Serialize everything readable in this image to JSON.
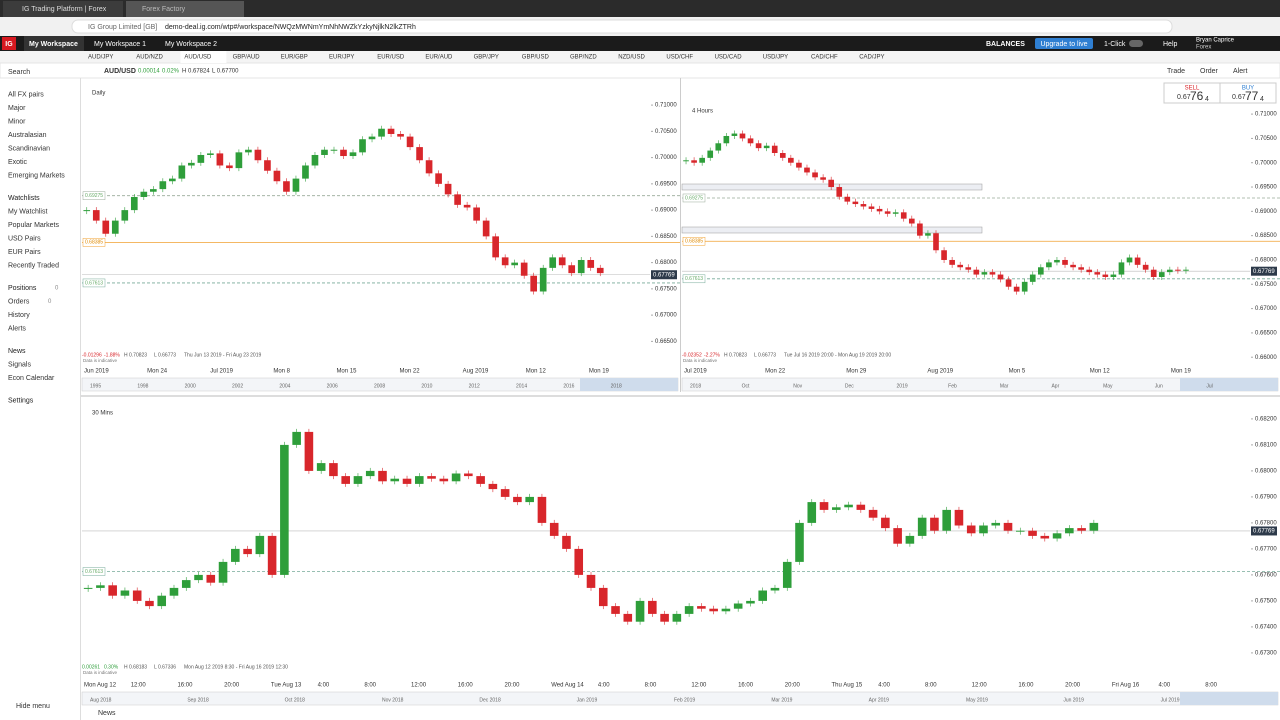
{
  "browser": {
    "tabs": [
      "IG Trading Platform | Forex",
      "Forex Factory"
    ],
    "site": "IG Group Limited [GB]",
    "url": "demo-deal.ig.com/wtp#/workspace/NWQzMWNmYmNhNWZkYzkyNjlkN2lkZTRh"
  },
  "topbar": {
    "logo": "IG",
    "workspaces": [
      "My Workspace",
      "My Workspace 1",
      "My Workspace 2"
    ],
    "balances": "BALANCES",
    "upgrade": "Upgrade to live",
    "one_click": "1-Click",
    "help": "Help",
    "user": "Bryan Caprice",
    "account": "Forex"
  },
  "sidebar": {
    "groups": [
      [
        "Search"
      ],
      [
        "All FX pairs",
        "Major",
        "Minor",
        "Australasian",
        "Scandinavian",
        "Exotic",
        "Emerging Markets"
      ],
      [
        "Watchlists",
        "My Watchlist",
        "Popular Markets",
        "USD Pairs",
        "EUR Pairs",
        "Recently Traded"
      ],
      [
        "Positions",
        "Orders",
        "History",
        "Alerts"
      ],
      [
        "News",
        "Signals",
        "Econ Calendar"
      ],
      [
        "Settings"
      ]
    ],
    "badges": [
      0,
      0
    ],
    "hide": "Hide menu",
    "news": "News"
  },
  "pair_tabs": [
    "AUD/JPY",
    "AUD/NZD",
    "AUD/USD",
    "GBP/AUD",
    "EUR/GBP",
    "EUR/JPY",
    "EUR/USD",
    "EUR/AUD",
    "GBP/JPY",
    "GBP/USD",
    "GBP/NZD",
    "NZD/USD",
    "USD/CHF",
    "USD/CAD",
    "USD/JPY",
    "CAD/CHF",
    "CAD/JPY"
  ],
  "instrument": {
    "name": "AUD/USD",
    "change": "0.00014",
    "percent": "0.02%",
    "high": "H 0.67824",
    "low": "L 0.67700",
    "actions": [
      "Trade",
      "Order",
      "Alert"
    ],
    "sell": {
      "label": "SELL",
      "prefix": "0.67",
      "big": "76",
      "small": "4"
    },
    "buy": {
      "label": "BUY",
      "prefix": "0.67",
      "big": "77",
      "small": "4"
    }
  },
  "candle_colors": {
    "up": "#2e9e3a",
    "down": "#d8262b"
  },
  "charts": [
    {
      "title": "Daily",
      "ylim": [
        0.6605,
        0.7144
      ],
      "yticks": [
        {
          "value": 0.71,
          "label": "0.71000"
        },
        {
          "value": 0.705,
          "label": "0.70500"
        },
        {
          "value": 0.7,
          "label": "0.70000"
        },
        {
          "value": 0.695,
          "label": "0.69500"
        },
        {
          "value": 0.69,
          "label": "0.69000"
        },
        {
          "value": 0.685,
          "label": "0.68500"
        },
        {
          "value": 0.68,
          "label": "0.68000"
        },
        {
          "value": 0.675,
          "label": "0.67500"
        },
        {
          "value": 0.67,
          "label": "0.67000"
        },
        {
          "value": 0.665,
          "label": "0.66500"
        }
      ],
      "closes": [
        0.69,
        0.688,
        0.6855,
        0.688,
        0.69,
        0.6925,
        0.6935,
        0.694,
        0.6955,
        0.696,
        0.6985,
        0.699,
        0.7005,
        0.7008,
        0.6985,
        0.698,
        0.701,
        0.7015,
        0.6995,
        0.6975,
        0.6955,
        0.6935,
        0.696,
        0.6985,
        0.7005,
        0.7015,
        0.7015,
        0.7003,
        0.701,
        0.7035,
        0.704,
        0.7055,
        0.7045,
        0.704,
        0.702,
        0.6995,
        0.697,
        0.695,
        0.693,
        0.691,
        0.6905,
        0.688,
        0.685,
        0.681,
        0.6795,
        0.68,
        0.6775,
        0.6745,
        0.679,
        0.681,
        0.6795,
        0.678,
        0.6805,
        0.679,
        0.678
      ],
      "levels": [
        0.69275,
        0.68385,
        0.67613
      ],
      "price": 0.67769,
      "info": [
        "-0.01296",
        "-1.88%",
        "H 0.70823",
        "L 0.66773",
        "Thu Jun 13 2019 - Fri Aug 23 2019"
      ],
      "note": "Data is indicative",
      "xlabels": [
        "Jun 2019",
        "Mon 24",
        "Jul 2019",
        "Mon 8",
        "Mon 15",
        "Mon 22",
        "Aug 2019",
        "Mon 12",
        "Mon 19"
      ],
      "navigator": [
        "1995",
        "1998",
        "2000",
        "2002",
        "2004",
        "2006",
        "2008",
        "2010",
        "2012",
        "2014",
        "2016",
        "2018"
      ]
    },
    {
      "title": "4 Hours",
      "ylim": [
        0.6584,
        0.7129
      ],
      "yticks": [
        {
          "value": 0.71,
          "label": "0.71000"
        },
        {
          "value": 0.705,
          "label": "0.70500"
        },
        {
          "value": 0.7,
          "label": "0.70000"
        },
        {
          "value": 0.695,
          "label": "0.69500"
        },
        {
          "value": 0.69,
          "label": "0.69000"
        },
        {
          "value": 0.685,
          "label": "0.68500"
        },
        {
          "value": 0.68,
          "label": "0.68000"
        },
        {
          "value": 0.675,
          "label": "0.67500"
        },
        {
          "value": 0.67,
          "label": "0.67000"
        },
        {
          "value": 0.665,
          "label": "0.66500"
        },
        {
          "value": 0.66,
          "label": "0.66000"
        }
      ],
      "closes": [
        0.7005,
        0.7,
        0.701,
        0.7025,
        0.704,
        0.7055,
        0.706,
        0.705,
        0.704,
        0.703,
        0.7035,
        0.702,
        0.701,
        0.7,
        0.699,
        0.698,
        0.697,
        0.6965,
        0.695,
        0.693,
        0.692,
        0.6915,
        0.691,
        0.6905,
        0.69,
        0.6895,
        0.6898,
        0.6885,
        0.6875,
        0.685,
        0.6855,
        0.682,
        0.68,
        0.679,
        0.6785,
        0.678,
        0.677,
        0.6775,
        0.677,
        0.676,
        0.6745,
        0.6735,
        0.6755,
        0.677,
        0.6785,
        0.6795,
        0.68,
        0.679,
        0.6785,
        0.678,
        0.6775,
        0.677,
        0.6765,
        0.677,
        0.6795,
        0.6805,
        0.679,
        0.678,
        0.6765,
        0.6775,
        0.678,
        0.6778,
        0.678
      ],
      "levels": [
        0.69275,
        0.68385,
        0.67613
      ],
      "price": 0.67769,
      "info": [
        "-0.02352",
        "-2.27%",
        "H 0.70823",
        "L 0.66773",
        "Tue Jul 16 2019 20:00 - Mon Aug 19 2019 20:00"
      ],
      "note": "Data is indicative",
      "xlabels": [
        "Jul 2019",
        "Mon 22",
        "Mon 29",
        "Aug 2019",
        "Mon 5",
        "Mon 12",
        "Mon 19"
      ],
      "navigator": [
        "2018",
        "Oct",
        "Nov",
        "Dec",
        "2019",
        "Feb",
        "Mar",
        "Apr",
        "May",
        "Jun",
        "Jul"
      ]
    },
    {
      "title": "30 Mins",
      "ylim": [
        0.67265,
        0.68265
      ],
      "yticks": [
        {
          "value": 0.682,
          "label": "0.68200"
        },
        {
          "value": 0.681,
          "label": "0.68100"
        },
        {
          "value": 0.68,
          "label": "0.68000"
        },
        {
          "value": 0.679,
          "label": "0.67900"
        },
        {
          "value": 0.678,
          "label": "0.67800"
        },
        {
          "value": 0.677,
          "label": "0.67700"
        },
        {
          "value": 0.676,
          "label": "0.67600"
        },
        {
          "value": 0.675,
          "label": "0.67500"
        },
        {
          "value": 0.674,
          "label": "0.67400"
        },
        {
          "value": 0.673,
          "label": "0.67300"
        }
      ],
      "closes": [
        0.6755,
        0.6756,
        0.6752,
        0.6754,
        0.675,
        0.6748,
        0.6752,
        0.6755,
        0.6758,
        0.676,
        0.6757,
        0.6765,
        0.677,
        0.6768,
        0.6775,
        0.676,
        0.681,
        0.6815,
        0.68,
        0.6803,
        0.6798,
        0.6795,
        0.6798,
        0.68,
        0.6796,
        0.6797,
        0.6795,
        0.6798,
        0.6797,
        0.6796,
        0.6799,
        0.6798,
        0.6795,
        0.6793,
        0.679,
        0.6788,
        0.679,
        0.678,
        0.6775,
        0.677,
        0.676,
        0.6755,
        0.6748,
        0.6745,
        0.6742,
        0.675,
        0.6745,
        0.6742,
        0.6745,
        0.6748,
        0.6747,
        0.6746,
        0.6747,
        0.6749,
        0.675,
        0.6754,
        0.6755,
        0.6765,
        0.678,
        0.6788,
        0.6785,
        0.6786,
        0.6787,
        0.6785,
        0.6782,
        0.6778,
        0.6772,
        0.6775,
        0.6782,
        0.6777,
        0.6785,
        0.6779,
        0.6776,
        0.6779,
        0.678,
        0.6777,
        0.6777,
        0.6775,
        0.6774,
        0.6776,
        0.6778,
        0.6777,
        0.678
      ],
      "levels": [
        0.67613
      ],
      "price": 0.67769,
      "info": [
        "0.00261",
        "0.30%",
        "H 0.68183",
        "L 0.67336",
        "Mon Aug 12 2019 8:30 - Fri Aug 16 2019 12:30"
      ],
      "note": "Data is indicative",
      "xlabels": [
        "Mon Aug 12",
        "12:00",
        "16:00",
        "20:00",
        "Tue Aug 13",
        "4:00",
        "8:00",
        "12:00",
        "16:00",
        "20:00",
        "Wed Aug 14",
        "4:00",
        "8:00",
        "12:00",
        "16:00",
        "20:00",
        "Thu Aug 15",
        "4:00",
        "8:00",
        "12:00",
        "16:00",
        "20:00",
        "Fri Aug 16",
        "4:00",
        "8:00"
      ],
      "navigator": [
        "Aug 2018",
        "Sep 2018",
        "Oct 2018",
        "Nov 2018",
        "Dec 2018",
        "Jan 2019",
        "Feb 2019",
        "Mar 2019",
        "Apr 2019",
        "May 2019",
        "Jun 2019",
        "Jul 2019"
      ]
    }
  ]
}
